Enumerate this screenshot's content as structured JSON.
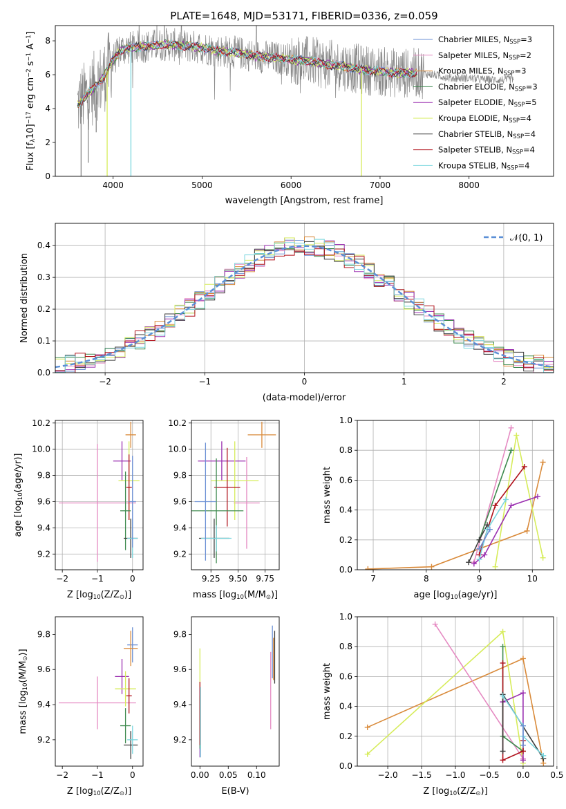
{
  "figure": {
    "title": "PLATE=1648, MJD=53171, FIBERID=0336, z=0.059"
  },
  "colors": {
    "Chabrier MILES": "#6a8fd4",
    "Salpeter MILES": "#e58ac2",
    "Kroupa MILES": "#d98a3a",
    "Chabrier ELODIE": "#3f8a4f",
    "Salpeter ELODIE": "#9a2fb0",
    "Kroupa ELODIE": "#d6ec5a",
    "Chabrier STELIB": "#3b3b3b",
    "Salpeter STELIB": "#b0101a",
    "Kroupa STELIB": "#7ad6de",
    "data": "#888888",
    "normal": "#5b8fd6"
  },
  "chart_data": [
    {
      "id": "spectrum",
      "type": "line",
      "xlabel": "wavelength [Angstrom, rest frame]",
      "ylabel": "Flux [f",
      "ylabel_sub": "λ",
      "ylabel_rest": "10",
      "ylabel_exp": "−17",
      "ylabel_units": " erg cm",
      "ylabel_exp2": "−2",
      "ylabel_units2": " s",
      "ylabel_exp3": "−1",
      "ylabel_units3": " A",
      "ylabel_exp4": "−1",
      "ylabel_close": "]",
      "xlim": [
        3350,
        8950
      ],
      "ylim": [
        0,
        8.9
      ],
      "xticks": [
        4000,
        5000,
        6000,
        7000,
        8000
      ],
      "yticks": [
        0,
        2,
        4,
        6,
        8
      ],
      "grid": false,
      "legend_position": "top-right",
      "legend": [
        {
          "model": "Chabrier MILES",
          "label": "Chabrier MILES, N",
          "sub": "SSP",
          "suffix": "=3"
        },
        {
          "model": "Salpeter MILES",
          "label": "Salpeter MILES, N",
          "sub": "SSP",
          "suffix": "=2"
        },
        {
          "model": "Kroupa MILES",
          "label": "Kroupa MILES, N",
          "sub": "SSP",
          "suffix": "=3"
        },
        {
          "model": "Chabrier ELODIE",
          "label": "Chabrier ELODIE, N",
          "sub": "SSP",
          "suffix": "=3"
        },
        {
          "model": "Salpeter ELODIE",
          "label": "Salpeter ELODIE, N",
          "sub": "SSP",
          "suffix": "=5"
        },
        {
          "model": "Kroupa ELODIE",
          "label": "Kroupa ELODIE, N",
          "sub": "SSP",
          "suffix": "=4"
        },
        {
          "model": "Chabrier STELIB",
          "label": "Chabrier STELIB, N",
          "sub": "SSP",
          "suffix": "=4"
        },
        {
          "model": "Salpeter STELIB",
          "label": "Salpeter STELIB, N",
          "sub": "SSP",
          "suffix": "=4"
        },
        {
          "model": "Kroupa STELIB",
          "label": "Kroupa STELIB, N",
          "sub": "SSP",
          "suffix": "=4"
        }
      ],
      "continuum": [
        [
          3600,
          4.2
        ],
        [
          3700,
          4.8
        ],
        [
          3800,
          5.3
        ],
        [
          3900,
          5.9
        ],
        [
          4000,
          6.9
        ],
        [
          4100,
          7.5
        ],
        [
          4200,
          7.6
        ],
        [
          4400,
          7.7
        ],
        [
          4600,
          7.8
        ],
        [
          4800,
          7.7
        ],
        [
          5000,
          7.6
        ],
        [
          5200,
          7.4
        ],
        [
          5400,
          7.3
        ],
        [
          5600,
          7.1
        ],
        [
          5800,
          7.0
        ],
        [
          6000,
          6.9
        ],
        [
          6200,
          6.8
        ],
        [
          6400,
          6.6
        ],
        [
          6600,
          6.5
        ],
        [
          6800,
          6.3
        ],
        [
          7000,
          6.2
        ],
        [
          7200,
          6.1
        ],
        [
          7400,
          6.1
        ],
        [
          7600,
          6.0
        ],
        [
          7800,
          5.8
        ],
        [
          8000,
          5.8
        ],
        [
          8200,
          5.7
        ],
        [
          8400,
          5.7
        ],
        [
          8500,
          5.75
        ]
      ],
      "data_range": [
        3600,
        8500
      ],
      "models_range": [
        3600,
        7420
      ],
      "absorption_dips": [
        {
          "x": 3933,
          "model": "Kroupa ELODIE",
          "depth": 0
        },
        {
          "x": 4200,
          "model": "Kroupa STELIB",
          "depth": 0
        },
        {
          "x": 6790,
          "model": "Kroupa ELODIE",
          "depth": 0
        },
        {
          "x": 3640,
          "model": "data",
          "depth": 0
        },
        {
          "x": 3720,
          "model": "data",
          "depth": 0.8
        },
        {
          "x": 3810,
          "model": "data",
          "depth": 2.6
        }
      ]
    },
    {
      "id": "residuals",
      "type": "histogram",
      "xlabel": "(data-model)/error",
      "ylabel": "Normed distribution",
      "xlim": [
        -2.5,
        2.5
      ],
      "ylim": [
        0,
        0.47
      ],
      "xticks": [
        -2,
        -1,
        0,
        1,
        2
      ],
      "yticks": [
        0.0,
        0.1,
        0.2,
        0.3,
        0.4
      ],
      "grid": true,
      "legend_position": "top-right",
      "legend_label": "𝒩(0, 1)",
      "bin_width": 0.1
    },
    {
      "id": "age_vs_Z",
      "type": "scatter",
      "xlabel": "Z [log",
      "xlabel_sub": "10",
      "xlabel_rest": "(Z/Z",
      "xlabel_sub2": "⊙",
      "xlabel_close": ")]",
      "ylabel": "age  [log",
      "ylabel_sub": "10",
      "ylabel_rest": "(age/yr)]",
      "xlim": [
        -2.2,
        0.3
      ],
      "ylim": [
        9.08,
        10.22
      ],
      "xticks": [
        -2,
        -1,
        0
      ],
      "yticks": [
        9.2,
        9.4,
        9.6,
        9.8,
        10.0,
        10.2
      ],
      "grid": true,
      "points": [
        {
          "model": "Salpeter MILES",
          "x": -1.0,
          "y": 9.59,
          "xerr": 1.1,
          "yerr": 0.45
        },
        {
          "model": "Kroupa MILES",
          "x": -0.05,
          "y": 10.11,
          "xerr": 0.15,
          "yerr": 0.1
        },
        {
          "model": "Salpeter ELODIE",
          "x": -0.3,
          "y": 9.91,
          "xerr": 0.25,
          "yerr": 0.15
        },
        {
          "model": "Kroupa ELODIE",
          "x": -0.1,
          "y": 9.76,
          "xerr": 0.3,
          "yerr": 0.3
        },
        {
          "model": "Salpeter STELIB",
          "x": -0.1,
          "y": 9.71,
          "xerr": 0.08,
          "yerr": 0.25
        },
        {
          "model": "Chabrier ELODIE",
          "x": -0.2,
          "y": 9.53,
          "xerr": 0.15,
          "yerr": 0.3
        },
        {
          "model": "Chabrier STELIB",
          "x": -0.05,
          "y": 9.32,
          "xerr": 0.2,
          "yerr": 0.15
        },
        {
          "model": "Kroupa STELIB",
          "x": 0.0,
          "y": 9.32,
          "xerr": 0.15,
          "yerr": 0.15
        },
        {
          "model": "Chabrier MILES",
          "x": 0.0,
          "y": 9.6,
          "xerr": 0.1,
          "yerr": 0.35
        }
      ]
    },
    {
      "id": "age_vs_mass",
      "type": "scatter",
      "xlabel": "mass [log",
      "xlabel_sub": "10",
      "xlabel_rest": "(M/M",
      "xlabel_sub2": "⊙",
      "xlabel_close": ")]",
      "xlim": [
        9.07,
        9.88
      ],
      "ylim": [
        9.08,
        10.22
      ],
      "xticks": [
        9.25,
        9.5,
        9.75
      ],
      "xtick_labels": [
        "9.25",
        "9.50",
        "9.75"
      ],
      "yticks": [
        9.2,
        9.4,
        9.6,
        9.8,
        10.0,
        10.2
      ],
      "grid": true,
      "points": [
        {
          "model": "Kroupa MILES",
          "x": 9.72,
          "y": 10.11,
          "xerr": 0.13,
          "yerr": 0.1
        },
        {
          "model": "Salpeter MILES",
          "x": 9.58,
          "y": 9.59,
          "xerr": 0.12,
          "yerr": 0.35
        },
        {
          "model": "Salpeter ELODIE",
          "x": 9.35,
          "y": 9.91,
          "xerr": 0.22,
          "yerr": 0.15
        },
        {
          "model": "Kroupa ELODIE",
          "x": 9.47,
          "y": 9.76,
          "xerr": 0.22,
          "yerr": 0.3
        },
        {
          "model": "Salpeter STELIB",
          "x": 9.4,
          "y": 9.71,
          "xerr": 0.12,
          "yerr": 0.3
        },
        {
          "model": "Chabrier ELODIE",
          "x": 9.3,
          "y": 9.53,
          "xerr": 0.25,
          "yerr": 0.4
        },
        {
          "model": "Chabrier STELIB",
          "x": 9.28,
          "y": 9.32,
          "xerr": 0.14,
          "yerr": 0.15
        },
        {
          "model": "Kroupa STELIB",
          "x": 9.3,
          "y": 9.32,
          "xerr": 0.14,
          "yerr": 0.1
        },
        {
          "model": "Chabrier MILES",
          "x": 9.2,
          "y": 9.6,
          "xerr": 0.1,
          "yerr": 0.45
        }
      ]
    },
    {
      "id": "weight_vs_age",
      "type": "line",
      "xlabel": "age  [log",
      "xlabel_sub": "10",
      "xlabel_rest": "(age/yr)]",
      "ylabel": "mass weight",
      "xlim": [
        6.7,
        10.4
      ],
      "ylim": [
        0,
        1.0
      ],
      "xticks": [
        7,
        8,
        9,
        10
      ],
      "yticks": [
        0.0,
        0.2,
        0.4,
        0.6,
        0.8,
        1.0
      ],
      "grid": true,
      "series": [
        {
          "model": "Kroupa MILES",
          "x": [
            6.9,
            8.1,
            9.9,
            10.2
          ],
          "y": [
            0.005,
            0.02,
            0.26,
            0.72
          ]
        },
        {
          "model": "Salpeter MILES",
          "x": [
            8.9,
            9.6
          ],
          "y": [
            0.05,
            0.95
          ]
        },
        {
          "model": "Kroupa ELODIE",
          "x": [
            9.3,
            9.7,
            10.2
          ],
          "y": [
            0.02,
            0.9,
            0.08
          ]
        },
        {
          "model": "Chabrier ELODIE",
          "x": [
            9.0,
            9.6
          ],
          "y": [
            0.2,
            0.8
          ]
        },
        {
          "model": "Salpeter STELIB",
          "x": [
            9.0,
            9.3,
            9.85
          ],
          "y": [
            0.1,
            0.43,
            0.69
          ]
        },
        {
          "model": "Salpeter ELODIE",
          "x": [
            8.9,
            9.1,
            9.6,
            10.1
          ],
          "y": [
            0.04,
            0.1,
            0.43,
            0.49
          ]
        },
        {
          "model": "Chabrier STELIB",
          "x": [
            8.8,
            9.0,
            9.15
          ],
          "y": [
            0.05,
            0.2,
            0.3
          ]
        },
        {
          "model": "Kroupa STELIB",
          "x": [
            9.0,
            9.15,
            9.5
          ],
          "y": [
            0.07,
            0.27,
            0.47
          ]
        },
        {
          "model": "Chabrier MILES",
          "x": [
            9.0,
            9.2
          ],
          "y": [
            0.14,
            0.27
          ]
        }
      ]
    },
    {
      "id": "mass_vs_Z",
      "type": "scatter",
      "xlabel": "Z [log",
      "xlabel_sub": "10",
      "xlabel_rest": "(Z/Z",
      "xlabel_sub2": "⊙",
      "xlabel_close": ")]",
      "ylabel": "mass [log",
      "ylabel_sub": "10",
      "ylabel_rest": "(M/M",
      "ylabel_sub2": "⊙",
      "ylabel_close": ")]",
      "xlim": [
        -2.2,
        0.3
      ],
      "ylim": [
        9.05,
        9.9
      ],
      "xticks": [
        -2,
        -1,
        0
      ],
      "yticks": [
        9.2,
        9.4,
        9.6,
        9.8
      ],
      "grid": false,
      "points": [
        {
          "model": "Salpeter MILES",
          "x": -1.0,
          "y": 9.41,
          "xerr": 1.1,
          "yerr": 0.15
        },
        {
          "model": "Chabrier MILES",
          "x": 0.0,
          "y": 9.74,
          "xerr": 0.15,
          "yerr": 0.1
        },
        {
          "model": "Kroupa MILES",
          "x": -0.05,
          "y": 9.72,
          "xerr": 0.2,
          "yerr": 0.1
        },
        {
          "model": "Salpeter ELODIE",
          "x": -0.3,
          "y": 9.56,
          "xerr": 0.2,
          "yerr": 0.1
        },
        {
          "model": "Kroupa ELODIE",
          "x": -0.2,
          "y": 9.49,
          "xerr": 0.3,
          "yerr": 0.1
        },
        {
          "model": "Salpeter STELIB",
          "x": -0.1,
          "y": 9.45,
          "xerr": 0.08,
          "yerr": 0.1
        },
        {
          "model": "Chabrier ELODIE",
          "x": -0.2,
          "y": 9.28,
          "xerr": 0.15,
          "yerr": 0.1
        },
        {
          "model": "Chabrier STELIB",
          "x": -0.05,
          "y": 9.17,
          "xerr": 0.2,
          "yerr": 0.08
        },
        {
          "model": "Kroupa STELIB",
          "x": 0.0,
          "y": 9.2,
          "xerr": 0.15,
          "yerr": 0.08
        }
      ]
    },
    {
      "id": "mass_vs_ebv",
      "type": "scatter",
      "xlabel": "E(B-V)",
      "xlim": [
        -0.015,
        0.14
      ],
      "ylim": [
        9.05,
        9.9
      ],
      "xticks": [
        0.0,
        0.05,
        0.1
      ],
      "xtick_labels": [
        "0.00",
        "0.05",
        "0.10"
      ],
      "yticks": [
        9.2,
        9.4,
        9.6,
        9.8
      ],
      "grid": false,
      "points": [
        {
          "model": "Kroupa ELODIE",
          "x": 0.0,
          "y": 9.5,
          "yerr": 0.22
        },
        {
          "model": "Salpeter ELODIE",
          "x": 0.0,
          "y": 9.3,
          "yerr": 0.2
        },
        {
          "model": "Chabrier ELODIE",
          "x": 0.0,
          "y": 9.3,
          "yerr": 0.15
        },
        {
          "model": "Salpeter STELIB",
          "x": 0.0,
          "y": 9.35,
          "yerr": 0.18
        },
        {
          "model": "Kroupa STELIB",
          "x": 0.001,
          "y": 9.3,
          "yerr": 0.2
        },
        {
          "model": "Salpeter MILES",
          "x": 0.125,
          "y": 9.48,
          "yerr": 0.22
        },
        {
          "model": "Chabrier MILES",
          "x": 0.128,
          "y": 9.7,
          "yerr": 0.15
        },
        {
          "model": "Kroupa MILES",
          "x": 0.13,
          "y": 9.66,
          "yerr": 0.12
        },
        {
          "model": "Chabrier STELIB",
          "x": 0.132,
          "y": 9.67,
          "yerr": 0.15
        }
      ]
    },
    {
      "id": "weight_vs_Z",
      "type": "line",
      "xlabel": "Z [log",
      "xlabel_sub": "10",
      "xlabel_rest": "(Z/Z",
      "xlabel_sub2": "⊙",
      "xlabel_close": ")]",
      "ylabel": "mass weight",
      "xlim": [
        -2.45,
        0.45
      ],
      "ylim": [
        0,
        1.0
      ],
      "xticks": [
        -2.0,
        -1.5,
        -1.0,
        -0.5,
        0.0,
        0.5
      ],
      "xtick_labels": [
        "−2.0",
        "−1.5",
        "−1.0",
        "−0.5",
        "0.0",
        "0.5"
      ],
      "yticks": [
        0.0,
        0.2,
        0.4,
        0.6,
        0.8,
        1.0
      ],
      "grid": true,
      "series": [
        {
          "model": "Kroupa MILES",
          "x": [
            -2.3,
            0.0,
            0.3
          ],
          "y": [
            0.26,
            0.72,
            0.02
          ]
        },
        {
          "model": "Kroupa ELODIE",
          "x": [
            -2.3,
            -0.3,
            0.0
          ],
          "y": [
            0.08,
            0.9,
            0.02
          ]
        },
        {
          "model": "Salpeter MILES",
          "x": [
            -1.3,
            0.0
          ],
          "y": [
            0.95,
            0.05
          ]
        },
        {
          "model": "Chabrier ELODIE",
          "x": [
            -0.3,
            -0.3,
            0.0
          ],
          "y": [
            0.8,
            0.2,
            0.1
          ]
        },
        {
          "model": "Salpeter ELODIE",
          "x": [
            -0.3,
            0.0,
            0.0
          ],
          "y": [
            0.43,
            0.49,
            0.04
          ]
        },
        {
          "model": "Salpeter STELIB",
          "x": [
            -0.3,
            -0.3,
            0.0,
            0.0
          ],
          "y": [
            0.69,
            0.04,
            0.1,
            0.17
          ]
        },
        {
          "model": "Chabrier STELIB",
          "x": [
            -0.3,
            -0.3,
            0.3
          ],
          "y": [
            0.1,
            0.48,
            0.05
          ]
        },
        {
          "model": "Kroupa STELIB",
          "x": [
            -0.3,
            0.0,
            0.0,
            0.3
          ],
          "y": [
            0.47,
            0.27,
            0.2,
            0.07
          ]
        },
        {
          "model": "Chabrier MILES",
          "x": [
            0.0,
            0.0
          ],
          "y": [
            0.14,
            0.27
          ]
        }
      ]
    }
  ]
}
